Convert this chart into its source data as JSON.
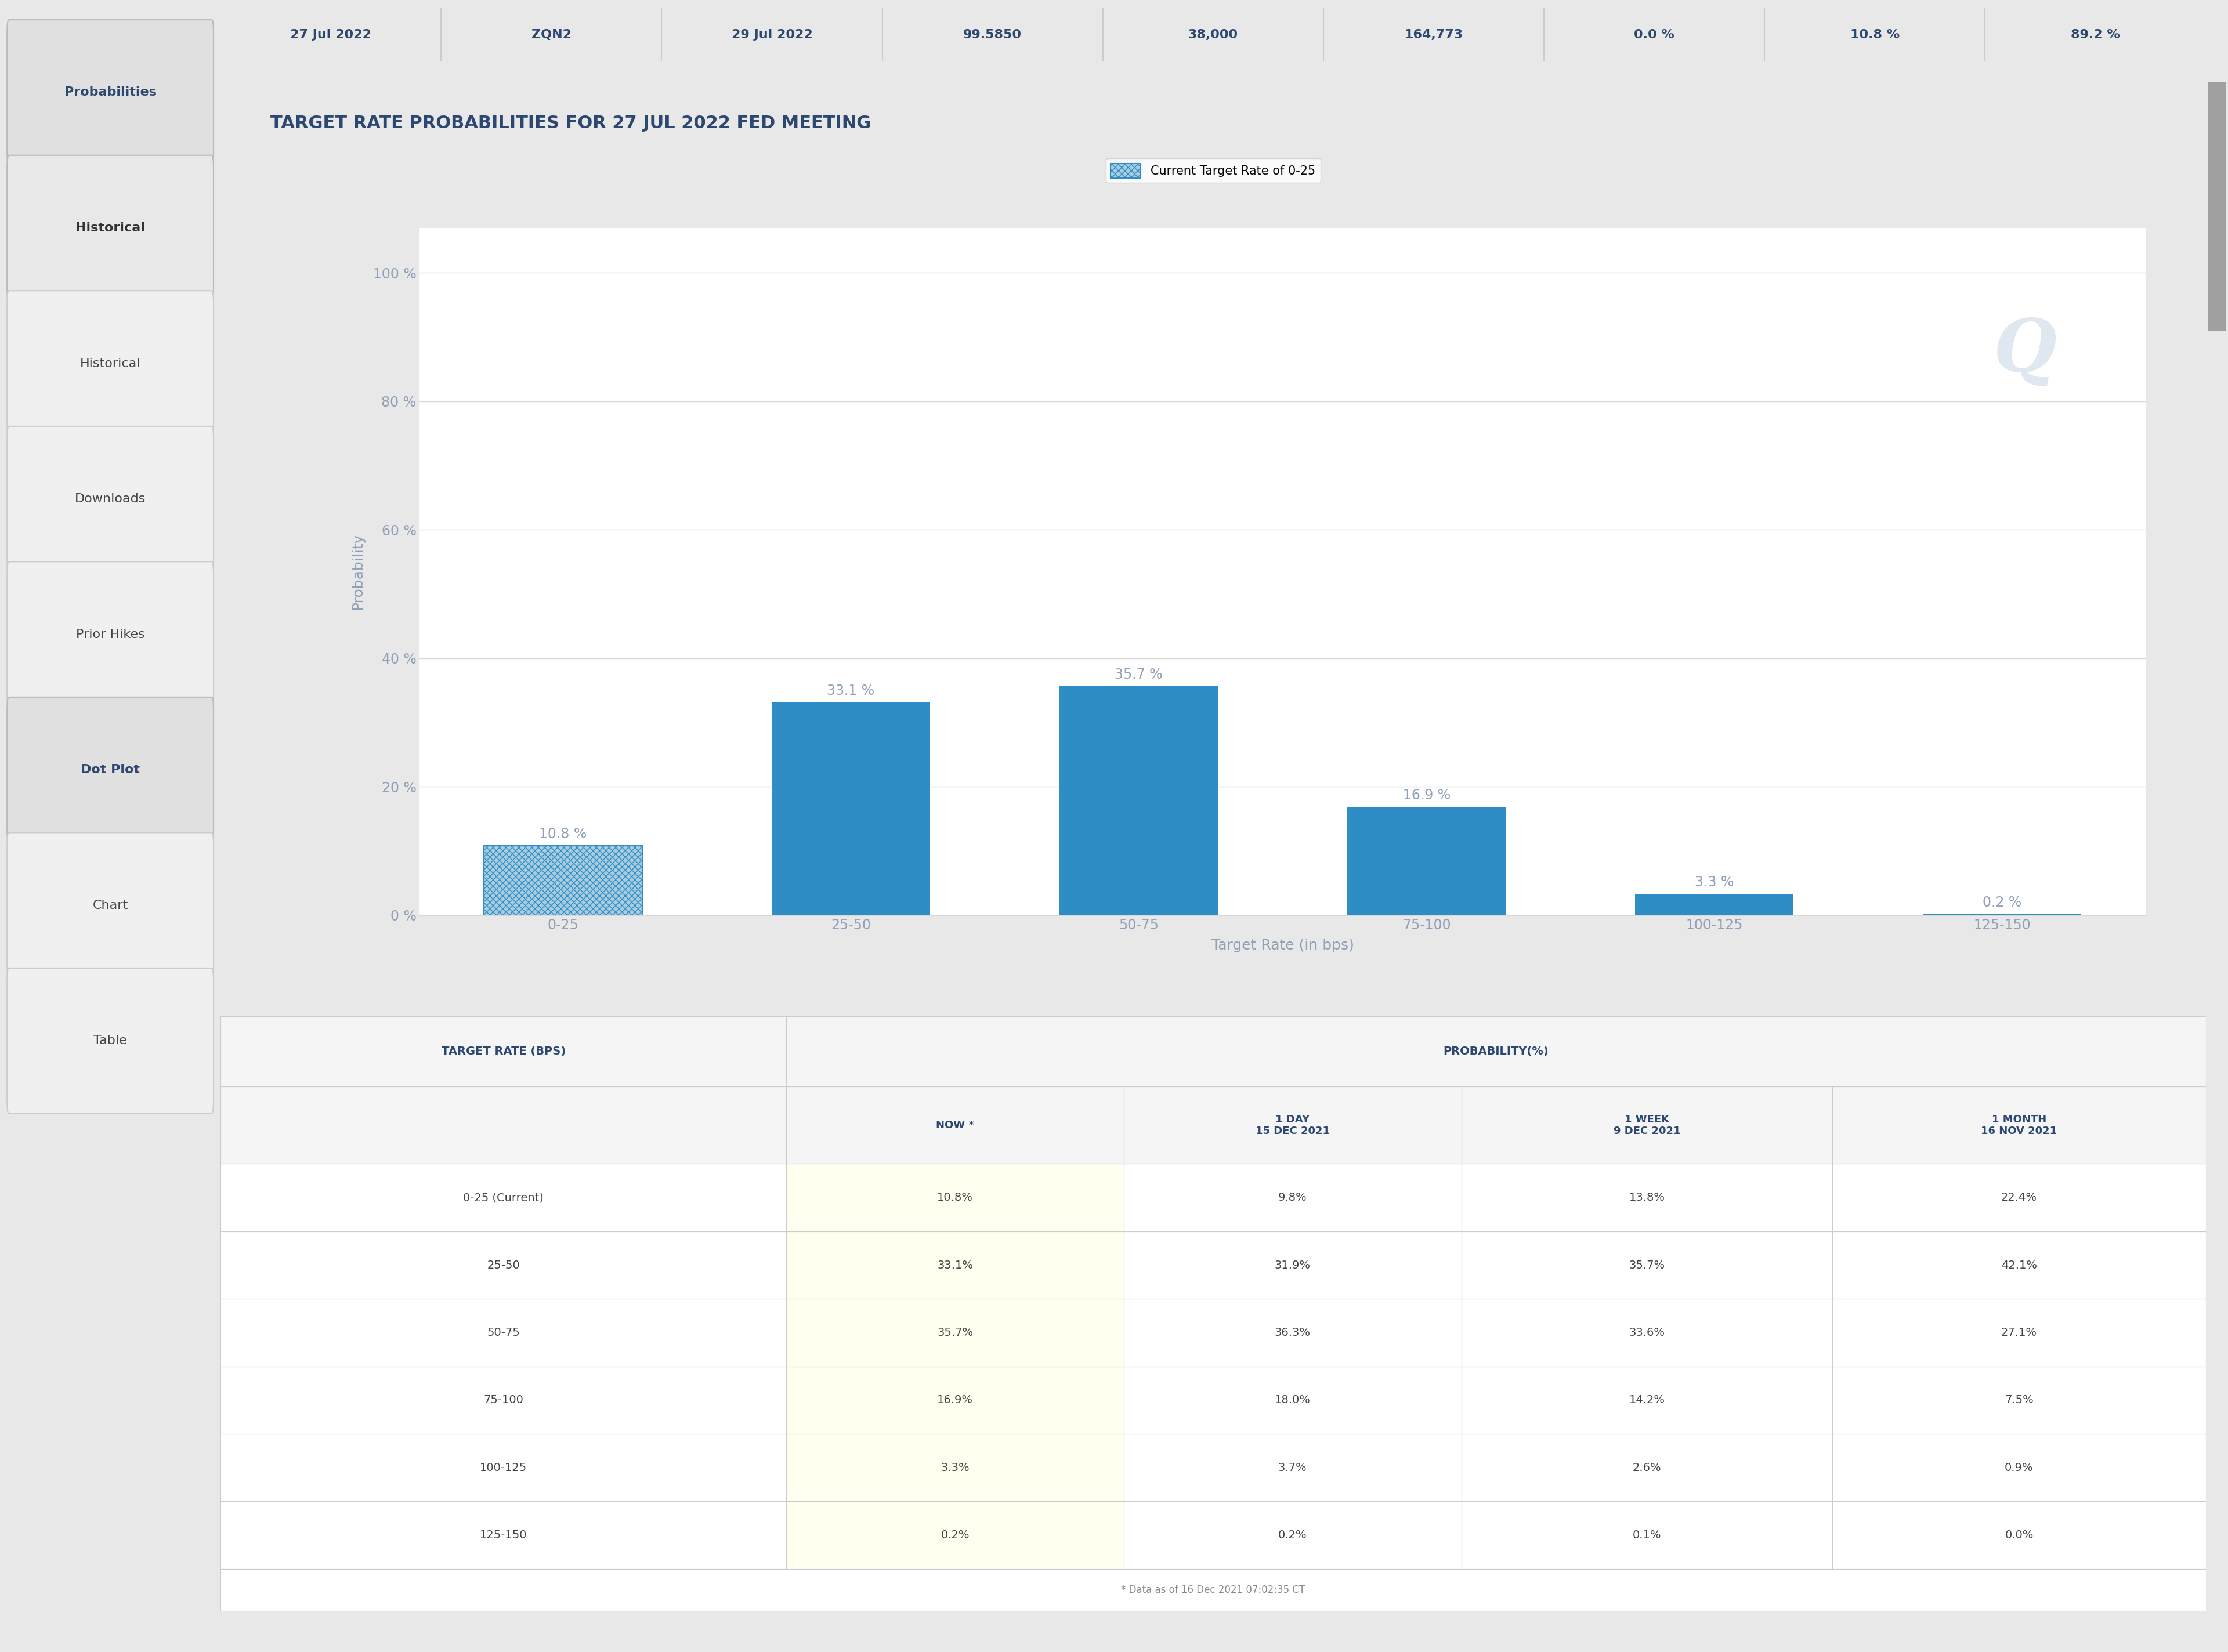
{
  "title": "TARGET RATE PROBABILITIES FOR 27 JUL 2022 FED MEETING",
  "legend_label": "Current Target Rate of 0-25",
  "categories": [
    "0-25",
    "25-50",
    "50-75",
    "75-100",
    "100-125",
    "125-150"
  ],
  "values": [
    10.8,
    33.1,
    35.7,
    16.9,
    3.3,
    0.2
  ],
  "bar_color": "#2d8dc4",
  "hatch_color": "#a8cce0",
  "ylabel": "Probability",
  "xlabel": "Target Rate (in bps)",
  "yticks": [
    0,
    20,
    40,
    60,
    80,
    100
  ],
  "ytick_labels": [
    "0 %",
    "20 %",
    "40 %",
    "60 %",
    "80 %",
    "100 %"
  ],
  "ylim": [
    0,
    107
  ],
  "bg_color": "#e8e8e8",
  "panel_bg": "#ffffff",
  "title_color": "#2c4770",
  "tick_color": "#8fa0b8",
  "label_color": "#8fa0b8",
  "value_label_color": "#8fa0b8",
  "grid_color": "#d8d8d8",
  "sidebar_bg": "#e8e8e8",
  "sidebar_items": [
    {
      "label": "Probabilities",
      "bold": true,
      "active": true
    },
    {
      "label": "Historical",
      "bold": true,
      "active": false
    },
    {
      "label": "Historical",
      "bold": false,
      "active": false
    },
    {
      "label": "Downloads",
      "bold": false,
      "active": false
    },
    {
      "label": "Prior Hikes",
      "bold": false,
      "active": false
    },
    {
      "label": "Dot Plot",
      "bold": true,
      "active": true
    },
    {
      "label": "Chart",
      "bold": false,
      "active": false
    },
    {
      "label": "Table",
      "bold": false,
      "active": false
    }
  ],
  "header_row_vals": [
    "27 Jul 2022",
    "ZQN2",
    "29 Jul 2022",
    "99.5850",
    "38,000",
    "164,773",
    "0.0 %",
    "10.8 %",
    "89.2 %"
  ],
  "table_title_label": "TARGET RATE (BPS)",
  "table_prob_label": "PROBABILITY(%)",
  "table_sub_headers": [
    "NOW *",
    "1 DAY\n15 DEC 2021",
    "1 WEEK\n9 DEC 2021",
    "1 MONTH\n16 NOV 2021"
  ],
  "table_rows": [
    [
      "0-25 (Current)",
      "10.8%",
      "9.8%",
      "13.8%",
      "22.4%"
    ],
    [
      "25-50",
      "33.1%",
      "31.9%",
      "35.7%",
      "42.1%"
    ],
    [
      "50-75",
      "35.7%",
      "36.3%",
      "33.6%",
      "27.1%"
    ],
    [
      "75-100",
      "16.9%",
      "18.0%",
      "14.2%",
      "7.5%"
    ],
    [
      "100-125",
      "3.3%",
      "3.7%",
      "2.6%",
      "0.9%"
    ],
    [
      "125-150",
      "0.2%",
      "0.2%",
      "0.1%",
      "0.0%"
    ]
  ],
  "table_footer": "* Data as of 16 Dec 2021 07:02:35 CT",
  "now_col_bg": "#fffff0",
  "header_bg": "#f5f5f5",
  "table_header_color": "#2c4770",
  "table_text_color": "#444444",
  "border_color": "#cccccc",
  "scrollbar_bg": "#d0d0d0",
  "scrollbar_fg": "#a0a0a0"
}
